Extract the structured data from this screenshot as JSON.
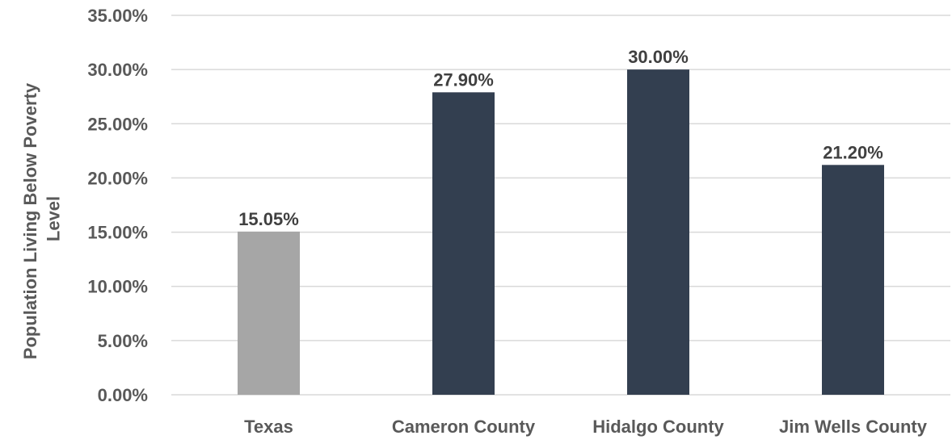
{
  "chart_data": {
    "type": "bar",
    "title": "",
    "xlabel": "",
    "ylabel_lines": [
      "Population Living Below Poverty",
      "Level"
    ],
    "categories": [
      "Texas",
      "Cameron County",
      "Hidalgo County",
      "Jim Wells County"
    ],
    "values": [
      15.05,
      27.9,
      30.0,
      21.2
    ],
    "data_labels": [
      "15.05%",
      "27.90%",
      "30.00%",
      "21.20%"
    ],
    "bar_colors": [
      "#a6a6a6",
      "#333f50",
      "#333f50",
      "#333f50"
    ],
    "ylim": [
      0,
      35
    ],
    "yticks": [
      0,
      5,
      10,
      15,
      20,
      25,
      30,
      35
    ],
    "ytick_labels": [
      "0.00%",
      "5.00%",
      "10.00%",
      "15.00%",
      "20.00%",
      "25.00%",
      "30.00%",
      "35.00%"
    ],
    "grid": true,
    "legend": "none"
  }
}
